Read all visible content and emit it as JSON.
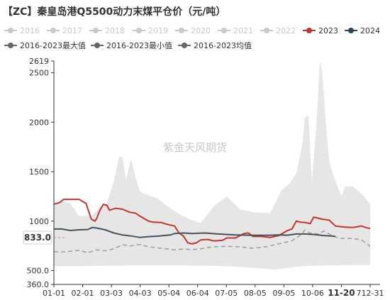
{
  "chart_data": {
    "type": "line",
    "title": "【ZC】秦皇岛港Q5500动力末煤平仓价（元/吨）",
    "watermark": "紫金天风期货",
    "x_ticks": [
      "01-01",
      "02-01",
      "03-03",
      "04-03",
      "05-04",
      "06-04",
      "07-05",
      "08-05",
      "09-05",
      "10-06",
      "11-20",
      "712-31"
    ],
    "y_ticks": [
      "360.0",
      "500.0",
      "1000",
      "1500",
      "2000",
      "2500",
      "2619"
    ],
    "ylim": [
      360,
      2619
    ],
    "cursor_value_label": "833.0",
    "cursor_date_label": "11-20",
    "legend": [
      {
        "name": "2016",
        "color": "#c9c9c9",
        "active": false
      },
      {
        "name": "2017",
        "color": "#c9c9c9",
        "active": false
      },
      {
        "name": "2018",
        "color": "#c9c9c9",
        "active": false
      },
      {
        "name": "2019",
        "color": "#c9c9c9",
        "active": false
      },
      {
        "name": "2020",
        "color": "#c9c9c9",
        "active": false
      },
      {
        "name": "2021",
        "color": "#c9c9c9",
        "active": false
      },
      {
        "name": "2022",
        "color": "#c9c9c9",
        "active": false
      },
      {
        "name": "2023",
        "color": "#c23531",
        "active": true
      },
      {
        "name": "2024",
        "color": "#2f4554",
        "active": true
      },
      {
        "name": "2016-2023最大值",
        "color": "#666666",
        "active": true
      },
      {
        "name": "2016-2023最小值",
        "color": "#666666",
        "active": true
      },
      {
        "name": "2016-2023均值",
        "color": "#666666",
        "active": true
      }
    ],
    "colors": {
      "band": "#e6e6e6",
      "series_2023": "#c23531",
      "series_2024": "#44525e",
      "mean": "#9e9e9e",
      "axis": "#333333"
    },
    "band_max": [
      [
        1,
        1150
      ],
      [
        10,
        1200
      ],
      [
        20,
        1180
      ],
      [
        30,
        1050
      ],
      [
        45,
        1060
      ],
      [
        55,
        1150
      ],
      [
        62,
        1180
      ],
      [
        70,
        1400
      ],
      [
        76,
        1650
      ],
      [
        80,
        1650
      ],
      [
        84,
        1420
      ],
      [
        90,
        1630
      ],
      [
        95,
        1440
      ],
      [
        100,
        1300
      ],
      [
        110,
        1260
      ],
      [
        120,
        1230
      ],
      [
        135,
        1130
      ],
      [
        150,
        1050
      ],
      [
        160,
        1010
      ],
      [
        170,
        980
      ],
      [
        185,
        1150
      ],
      [
        200,
        1250
      ],
      [
        215,
        1120
      ],
      [
        230,
        1090
      ],
      [
        250,
        1080
      ],
      [
        262,
        1300
      ],
      [
        272,
        1380
      ],
      [
        280,
        1480
      ],
      [
        287,
        1780
      ],
      [
        290,
        2050
      ],
      [
        294,
        2060
      ],
      [
        298,
        1400
      ],
      [
        302,
        1850
      ],
      [
        305,
        2250
      ],
      [
        307,
        2619
      ],
      [
        310,
        2500
      ],
      [
        314,
        2000
      ],
      [
        318,
        1600
      ],
      [
        325,
        1400
      ],
      [
        332,
        1250
      ],
      [
        336,
        1350
      ],
      [
        345,
        1350
      ],
      [
        355,
        1280
      ],
      [
        365,
        1170
      ]
    ],
    "band_min": [
      [
        1,
        545
      ],
      [
        30,
        545
      ],
      [
        60,
        548
      ],
      [
        90,
        552
      ],
      [
        120,
        553
      ],
      [
        150,
        552
      ],
      [
        180,
        548
      ],
      [
        210,
        540
      ],
      [
        230,
        528
      ],
      [
        245,
        518
      ],
      [
        255,
        510
      ],
      [
        265,
        520
      ],
      [
        275,
        535
      ],
      [
        290,
        545
      ],
      [
        310,
        552
      ],
      [
        340,
        555
      ],
      [
        365,
        556
      ]
    ],
    "mean": [
      [
        1,
        690
      ],
      [
        15,
        690
      ],
      [
        30,
        705
      ],
      [
        40,
        680
      ],
      [
        50,
        710
      ],
      [
        60,
        700
      ],
      [
        70,
        720
      ],
      [
        80,
        760
      ],
      [
        90,
        750
      ],
      [
        100,
        765
      ],
      [
        110,
        740
      ],
      [
        120,
        730
      ],
      [
        130,
        720
      ],
      [
        140,
        710
      ],
      [
        150,
        718
      ],
      [
        160,
        712
      ],
      [
        170,
        720
      ],
      [
        180,
        735
      ],
      [
        190,
        742
      ],
      [
        200,
        745
      ],
      [
        215,
        740
      ],
      [
        230,
        725
      ],
      [
        245,
        740
      ],
      [
        255,
        760
      ],
      [
        265,
        780
      ],
      [
        275,
        800
      ],
      [
        285,
        860
      ],
      [
        290,
        910
      ],
      [
        295,
        880
      ],
      [
        305,
        870
      ],
      [
        312,
        900
      ],
      [
        320,
        860
      ],
      [
        330,
        825
      ],
      [
        345,
        825
      ],
      [
        355,
        810
      ],
      [
        365,
        745
      ]
    ],
    "series_2023": [
      [
        1,
        1170
      ],
      [
        8,
        1190
      ],
      [
        12,
        1220
      ],
      [
        20,
        1220
      ],
      [
        30,
        1220
      ],
      [
        38,
        1180
      ],
      [
        44,
        1020
      ],
      [
        48,
        1000
      ],
      [
        50,
        1020
      ],
      [
        54,
        1110
      ],
      [
        58,
        1170
      ],
      [
        62,
        1160
      ],
      [
        65,
        1110
      ],
      [
        72,
        1130
      ],
      [
        80,
        1120
      ],
      [
        88,
        1090
      ],
      [
        95,
        1080
      ],
      [
        100,
        1050
      ],
      [
        110,
        1000
      ],
      [
        115,
        990
      ],
      [
        125,
        985
      ],
      [
        130,
        970
      ],
      [
        135,
        960
      ],
      [
        140,
        950
      ],
      [
        145,
        880
      ],
      [
        150,
        850
      ],
      [
        155,
        780
      ],
      [
        160,
        770
      ],
      [
        165,
        780
      ],
      [
        170,
        810
      ],
      [
        178,
        815
      ],
      [
        185,
        800
      ],
      [
        195,
        805
      ],
      [
        200,
        830
      ],
      [
        210,
        830
      ],
      [
        220,
        875
      ],
      [
        225,
        880
      ],
      [
        230,
        845
      ],
      [
        240,
        845
      ],
      [
        250,
        835
      ],
      [
        260,
        855
      ],
      [
        270,
        905
      ],
      [
        275,
        920
      ],
      [
        280,
        1000
      ],
      [
        285,
        990
      ],
      [
        290,
        985
      ],
      [
        296,
        975
      ],
      [
        300,
        1040
      ],
      [
        305,
        1030
      ],
      [
        310,
        1020
      ],
      [
        318,
        1010
      ],
      [
        325,
        950
      ],
      [
        335,
        940
      ],
      [
        345,
        935
      ],
      [
        355,
        950
      ],
      [
        360,
        935
      ],
      [
        365,
        925
      ]
    ],
    "series_2024": [
      [
        1,
        920
      ],
      [
        10,
        920
      ],
      [
        20,
        905
      ],
      [
        30,
        912
      ],
      [
        40,
        915
      ],
      [
        45,
        935
      ],
      [
        50,
        930
      ],
      [
        60,
        912
      ],
      [
        70,
        880
      ],
      [
        80,
        860
      ],
      [
        90,
        850
      ],
      [
        100,
        835
      ],
      [
        110,
        843
      ],
      [
        120,
        848
      ],
      [
        135,
        860
      ],
      [
        140,
        875
      ],
      [
        150,
        880
      ],
      [
        160,
        875
      ],
      [
        175,
        880
      ],
      [
        190,
        870
      ],
      [
        210,
        860
      ],
      [
        230,
        857
      ],
      [
        245,
        856
      ],
      [
        260,
        860
      ],
      [
        270,
        858
      ],
      [
        280,
        870
      ],
      [
        290,
        870
      ],
      [
        300,
        865
      ],
      [
        310,
        855
      ],
      [
        320,
        850
      ],
      [
        325,
        845
      ]
    ]
  }
}
